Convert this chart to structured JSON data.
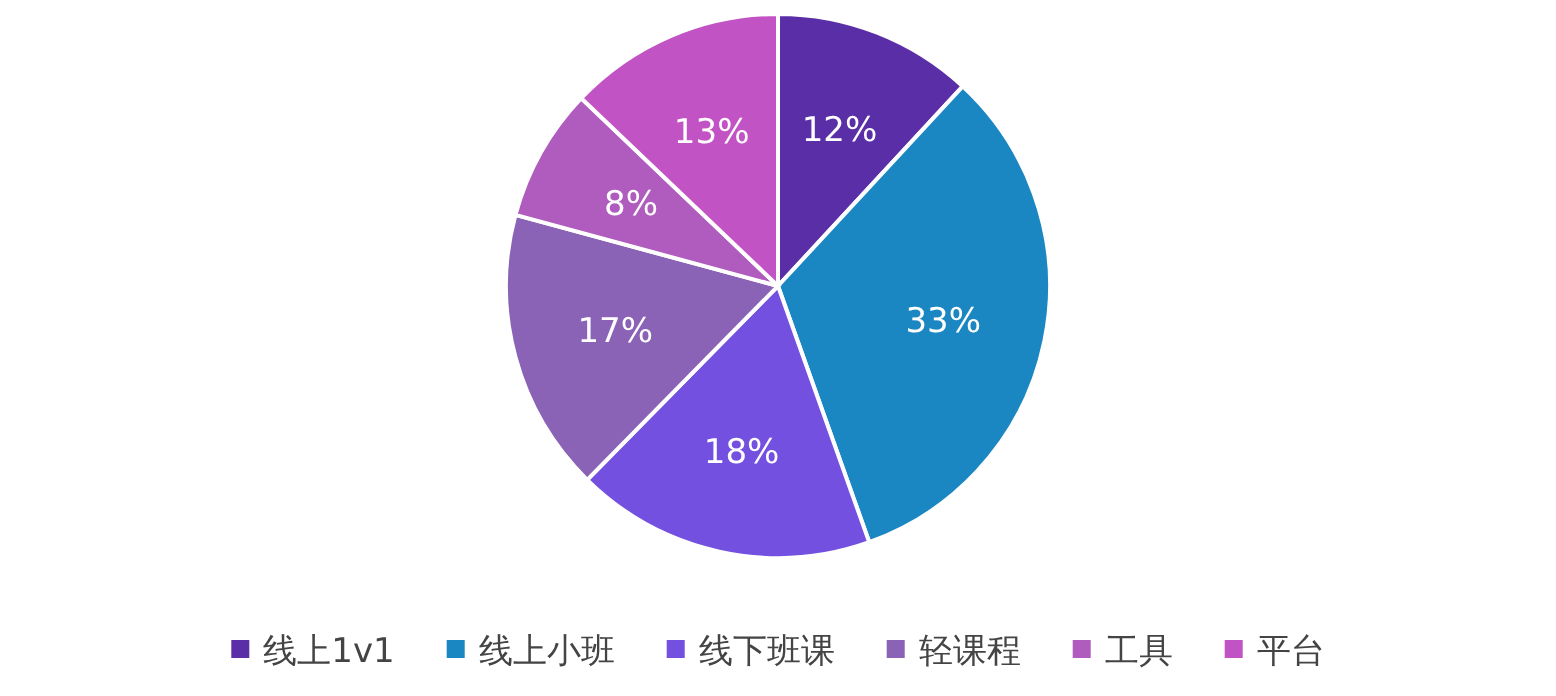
{
  "chart_data": {
    "type": "pie",
    "categories": [
      "线上1v1",
      "线上小班",
      "线下班课",
      "轻课程",
      "工具",
      "平台"
    ],
    "values": [
      12,
      33,
      18,
      17,
      8,
      13
    ],
    "value_labels": [
      "12%",
      "33%",
      "18%",
      "17%",
      "8%",
      "13%"
    ],
    "colors": [
      "#5a2ea6",
      "#1a86c2",
      "#7450e0",
      "#8a62b6",
      "#b05cbf",
      "#c253c4"
    ],
    "legend": "bottom"
  }
}
